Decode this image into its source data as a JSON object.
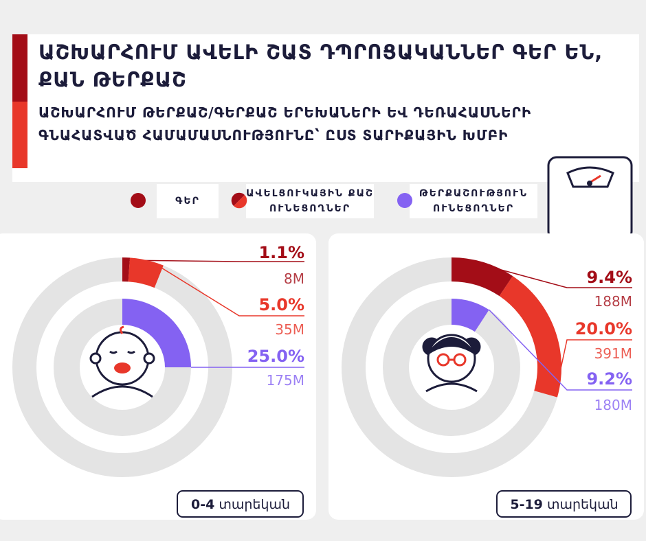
{
  "header": {
    "title": "ԱՇԽԱՐՀՈՒՄ ԱՎԵԼԻ ՇԱՏ ԴՊՐՈՑԱԿԱՆՆԵՐ ԳԵՐ ԵՆ, ՔԱՆ ԹԵՐՔԱՇ",
    "subtitle": "ԱՇԽԱՐՀՈՒՄ ԹԵՐՔԱՇ/ԳԵՐՔԱՇ ԵՐԵԽԱՆԵՐԻ ԵՎ ԴԵՌԱՀԱՍՆԵՐԻ ԳՆԱՀԱՏՎԱԾ ՀԱՄԱՄԱՍՆՈՒԹՅՈՒՆԸ՝ ԸՍՏ ՏԱՐԻՔԱՅԻՆ ԽՄԲԻ"
  },
  "chart_data": {
    "type": "donut",
    "categories": [
      "0-4",
      "5-19"
    ],
    "category_unit": "տարեկան",
    "series": [
      {
        "name": "ԳԵՐ",
        "color": "#a30d17",
        "values": [
          1.1,
          9.4
        ],
        "value_labels": [
          "1.1%",
          "9.4%"
        ],
        "counts": [
          "8M",
          "188M"
        ]
      },
      {
        "name": "ԱՎԵԼՑՈՒԿԱՅԻՆ ՔԱՇ ՈՒՆԵՑՈՂՆԵՐ",
        "color": "#e8372a",
        "values": [
          5.0,
          20.0
        ],
        "value_labels": [
          "5.0%",
          "20.0%"
        ],
        "counts": [
          "35M",
          "391M"
        ]
      },
      {
        "name": "ԹԵՐՔԱՇՈՒԹՅՈՒՆ ՈՒՆԵՑՈՂՆԵՐ",
        "color": "#8462f2",
        "values": [
          25.0,
          9.2
        ],
        "value_labels": [
          "25.0%",
          "9.2%"
        ],
        "counts": [
          "175M",
          "180M"
        ]
      }
    ]
  }
}
